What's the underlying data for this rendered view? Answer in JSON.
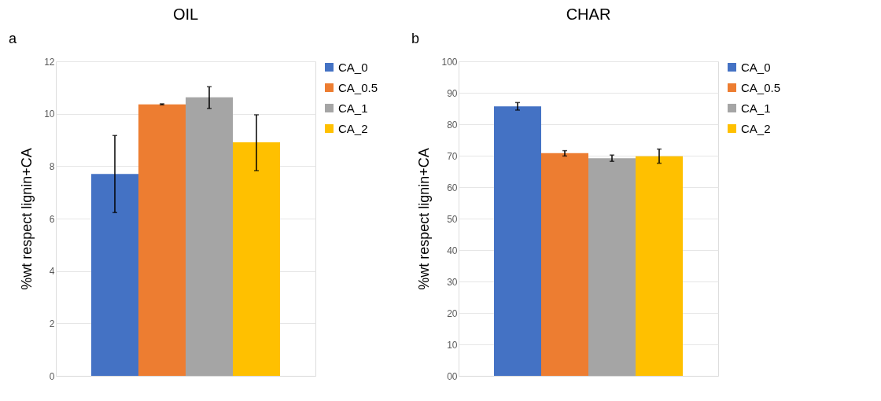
{
  "chart_data": [
    {
      "type": "bar",
      "title": "OIL",
      "ylabel": "%wt respect lignin+CA",
      "categories": [
        null
      ],
      "ylim": [
        0,
        12
      ],
      "yticks": [
        0,
        2,
        4,
        6,
        8,
        10,
        12
      ],
      "grid": "y",
      "legend": "right",
      "annotations": [
        "a"
      ],
      "series": [
        {
          "name": "CA_0",
          "color": "#4472c4",
          "values": [
            7.7
          ],
          "errors": [
            [
              6.23,
              9.17
            ]
          ]
        },
        {
          "name": "CA_0.5",
          "color": "#ed7d31",
          "values": [
            10.36
          ],
          "errors": [
            [
              10.34,
              10.38
            ]
          ]
        },
        {
          "name": "CA_1",
          "color": "#a5a5a5",
          "values": [
            10.63
          ],
          "errors": [
            [
              10.2,
              11.03
            ]
          ]
        },
        {
          "name": "CA_2",
          "color": "#ffc000",
          "values": [
            8.91
          ],
          "errors": [
            [
              7.83,
              9.96
            ]
          ]
        }
      ]
    },
    {
      "type": "bar",
      "title": "CHAR",
      "ylabel": "%wt respect lignin+CA",
      "categories": [
        null
      ],
      "ylim": [
        0,
        100
      ],
      "yticks": [
        {
          "value": 0,
          "label": "00"
        },
        10,
        20,
        30,
        40,
        50,
        60,
        70,
        80,
        90,
        100
      ],
      "grid": "y",
      "legend": "right",
      "annotations": [
        "b"
      ],
      "series": [
        {
          "name": "CA_0",
          "color": "#4472c4",
          "values": [
            85.7
          ],
          "errors": [
            [
              84.5,
              86.9
            ]
          ]
        },
        {
          "name": "CA_0.5",
          "color": "#ed7d31",
          "values": [
            70.8
          ],
          "errors": [
            [
              69.9,
              71.6
            ]
          ]
        },
        {
          "name": "CA_1",
          "color": "#a5a5a5",
          "values": [
            69.2
          ],
          "errors": [
            [
              68.2,
              70.2
            ]
          ]
        },
        {
          "name": "CA_2",
          "color": "#ffc000",
          "values": [
            69.8
          ],
          "errors": [
            [
              67.6,
              72.1
            ]
          ]
        }
      ]
    }
  ]
}
